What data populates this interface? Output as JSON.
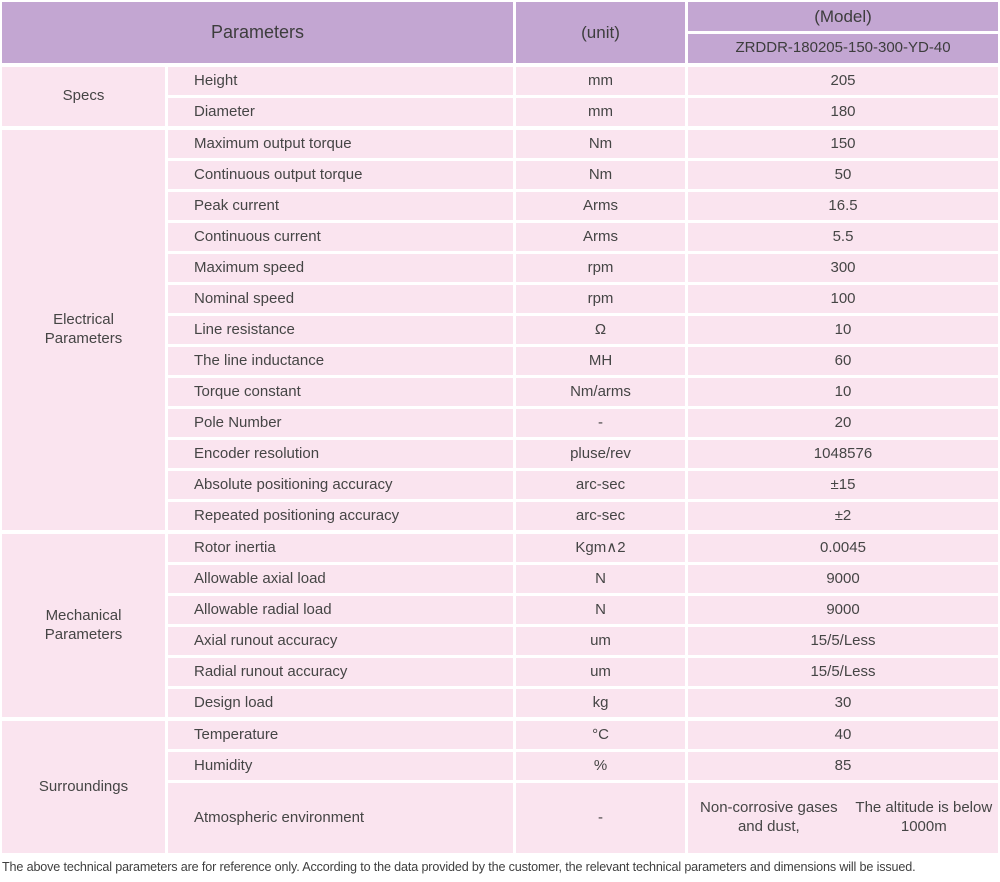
{
  "header": {
    "parameters_label": "Parameters",
    "unit_label": "(unit)",
    "model_label": "(Model)",
    "model_value": "ZRDDR-180205-150-300-YD-40"
  },
  "sections": [
    {
      "id": "specs",
      "name": [
        "Specs"
      ],
      "rows": [
        {
          "param": "Height",
          "unit": "mm",
          "value": [
            "205"
          ]
        },
        {
          "param": "Diameter",
          "unit": "mm",
          "value": [
            "180"
          ]
        }
      ]
    },
    {
      "id": "electrical-parameters",
      "name": [
        "Electrical",
        "Parameters"
      ],
      "rows": [
        {
          "param": "Maximum output torque",
          "unit": "Nm",
          "value": [
            "150"
          ]
        },
        {
          "param": "Continuous output torque",
          "unit": "Nm",
          "value": [
            "50"
          ]
        },
        {
          "param": "Peak current",
          "unit": "Arms",
          "value": [
            "16.5"
          ]
        },
        {
          "param": "Continuous current",
          "unit": "Arms",
          "value": [
            "5.5"
          ]
        },
        {
          "param": "Maximum speed",
          "unit": "rpm",
          "value": [
            "300"
          ]
        },
        {
          "param": "Nominal speed",
          "unit": "rpm",
          "value": [
            "100"
          ]
        },
        {
          "param": "Line resistance",
          "unit": "Ω",
          "value": [
            "10"
          ]
        },
        {
          "param": "The line inductance",
          "unit": "MH",
          "value": [
            "60"
          ]
        },
        {
          "param": "Torque constant",
          "unit": "Nm/arms",
          "value": [
            "10"
          ]
        },
        {
          "param": "Pole Number",
          "unit": "-",
          "value": [
            "20"
          ]
        },
        {
          "param": "Encoder resolution",
          "unit": "pluse/rev",
          "value": [
            "1048576"
          ]
        },
        {
          "param": "Absolute positioning accuracy",
          "unit": "arc-sec",
          "value": [
            "±15"
          ]
        },
        {
          "param": "Repeated positioning accuracy",
          "unit": "arc-sec",
          "value": [
            "±2"
          ]
        }
      ]
    },
    {
      "id": "mechanical-parameters",
      "name": [
        "Mechanical",
        "Parameters"
      ],
      "rows": [
        {
          "param": "Rotor inertia",
          "unit": "Kgm∧2",
          "value": [
            "0.0045"
          ]
        },
        {
          "param": "Allowable axial load",
          "unit": "N",
          "value": [
            "9000"
          ]
        },
        {
          "param": "Allowable radial load",
          "unit": "N",
          "value": [
            "9000"
          ]
        },
        {
          "param": "Axial runout accuracy",
          "unit": "um",
          "value": [
            "15/5/Less"
          ]
        },
        {
          "param": "Radial runout accuracy",
          "unit": "um",
          "value": [
            "15/5/Less"
          ]
        },
        {
          "param": "Design load",
          "unit": "kg",
          "value": [
            "30"
          ]
        }
      ]
    },
    {
      "id": "surroundings",
      "name": [
        "Surroundings"
      ],
      "rows": [
        {
          "param": "Temperature",
          "unit": "°C",
          "value": [
            "40"
          ]
        },
        {
          "param": "Humidity",
          "unit": "%",
          "value": [
            "85"
          ]
        },
        {
          "param": "Atmospheric environment",
          "unit": "-",
          "value": [
            "Non-corrosive gases and dust,",
            "The altitude is below 1000m"
          ],
          "tall": true
        }
      ]
    }
  ],
  "footer": {
    "note": "The above technical parameters are for reference only. According to the data provided by the customer, the relevant technical parameters and dimensions will be issued."
  },
  "colors": {
    "header_bg": "#c3a6d2",
    "row_bg": "#fae4ef",
    "text": "#404040"
  }
}
